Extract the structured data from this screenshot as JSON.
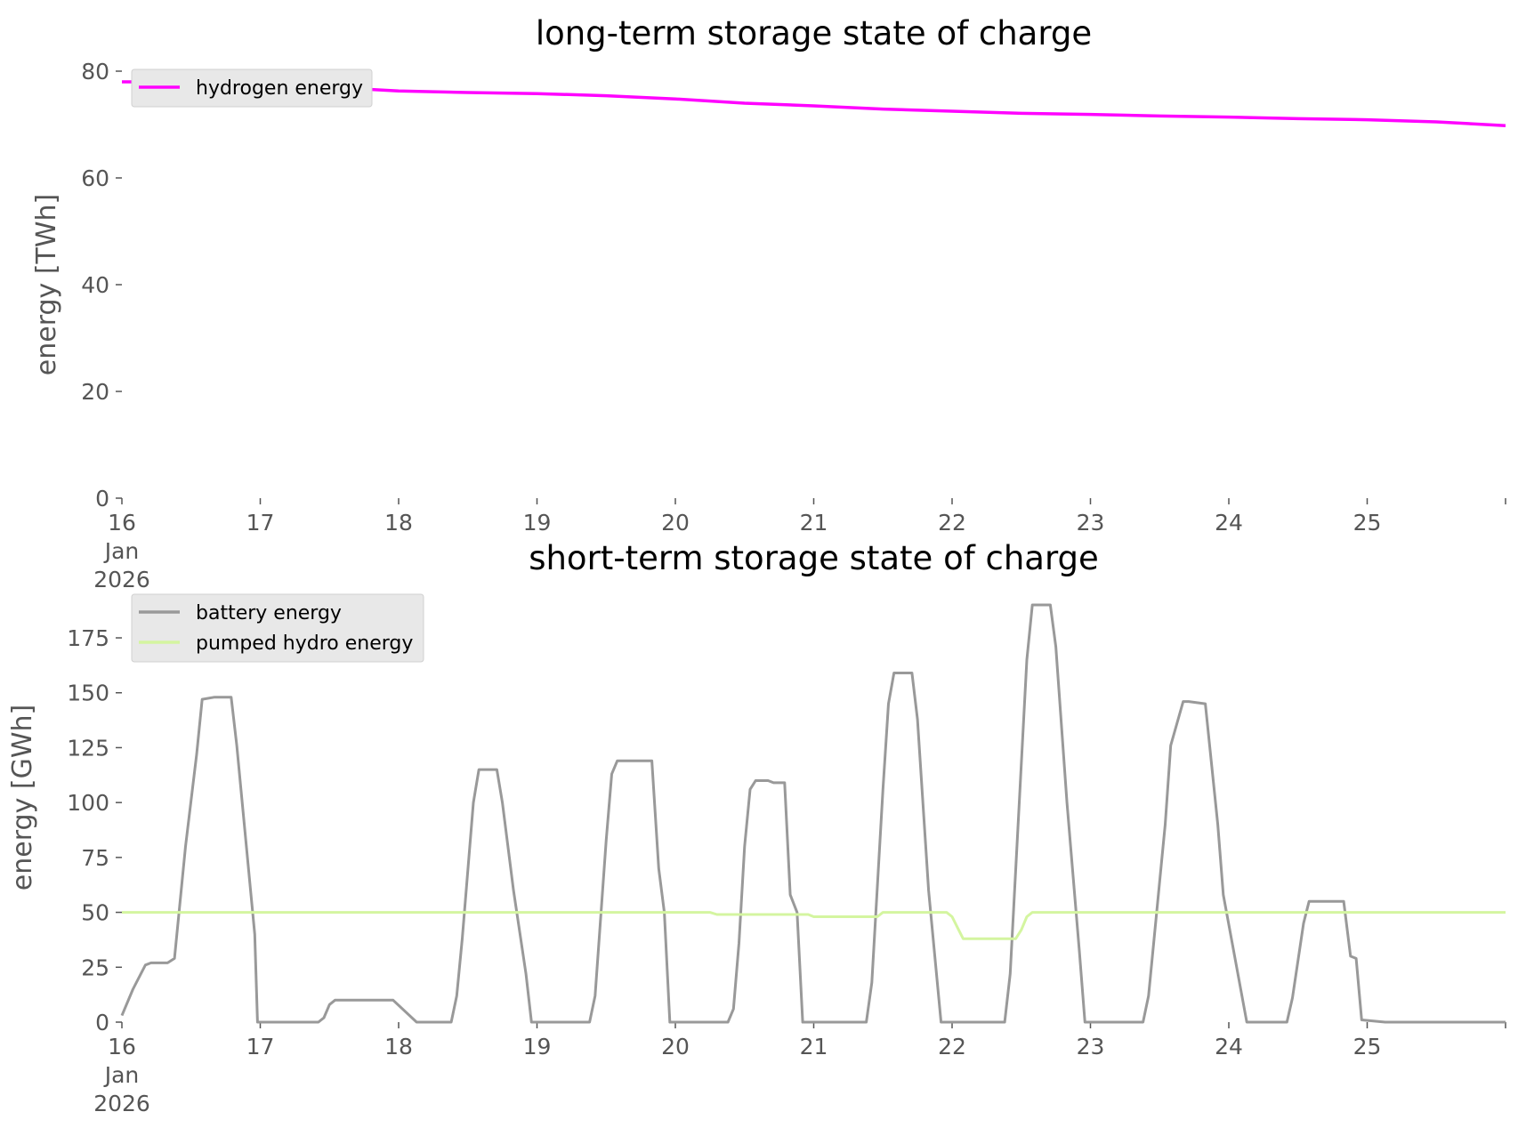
{
  "chart_data": [
    {
      "type": "line",
      "title": "long-term storage state of charge",
      "xlabel": "",
      "ylabel": "energy [TWh]",
      "xlim": [
        16,
        26
      ],
      "ylim": [
        0,
        80
      ],
      "xticks": [
        {
          "v": 16,
          "lines": [
            "16",
            "Jan",
            "2026"
          ]
        },
        {
          "v": 17,
          "lines": [
            "17"
          ]
        },
        {
          "v": 18,
          "lines": [
            "18"
          ]
        },
        {
          "v": 19,
          "lines": [
            "19"
          ]
        },
        {
          "v": 20,
          "lines": [
            "20"
          ]
        },
        {
          "v": 21,
          "lines": [
            "21"
          ]
        },
        {
          "v": 22,
          "lines": [
            "22"
          ]
        },
        {
          "v": 23,
          "lines": [
            "23"
          ]
        },
        {
          "v": 24,
          "lines": [
            "24"
          ]
        },
        {
          "v": 25,
          "lines": [
            "25"
          ]
        },
        {
          "v": 26,
          "lines": []
        }
      ],
      "yticks": [
        0,
        20,
        40,
        60,
        80
      ],
      "legend": "top-left",
      "grid": false,
      "series": [
        {
          "name": "hydrogen energy",
          "color": "#ff00ff",
          "x": [
            16,
            16.5,
            17,
            17.5,
            18,
            18.5,
            19,
            19.5,
            20,
            20.5,
            21,
            21.5,
            22,
            22.5,
            23,
            23.5,
            24,
            24.5,
            25,
            25.5,
            26
          ],
          "y": [
            78,
            78,
            77.5,
            77,
            76.3,
            76,
            75.8,
            75.4,
            74.8,
            74,
            73.5,
            72.9,
            72.5,
            72.1,
            71.9,
            71.6,
            71.4,
            71.1,
            70.9,
            70.5,
            69.8
          ]
        }
      ]
    },
    {
      "type": "line",
      "title": "short-term storage state of charge",
      "xlabel": "",
      "ylabel": "energy [GWh]",
      "xlim": [
        16,
        26
      ],
      "ylim": [
        0,
        190
      ],
      "xticks": [
        {
          "v": 16,
          "lines": [
            "16",
            "Jan",
            "2026"
          ]
        },
        {
          "v": 17,
          "lines": [
            "17"
          ]
        },
        {
          "v": 18,
          "lines": [
            "18"
          ]
        },
        {
          "v": 19,
          "lines": [
            "19"
          ]
        },
        {
          "v": 20,
          "lines": [
            "20"
          ]
        },
        {
          "v": 21,
          "lines": [
            "21"
          ]
        },
        {
          "v": 22,
          "lines": [
            "22"
          ]
        },
        {
          "v": 23,
          "lines": [
            "23"
          ]
        },
        {
          "v": 24,
          "lines": [
            "24"
          ]
        },
        {
          "v": 25,
          "lines": [
            "25"
          ]
        },
        {
          "v": 26,
          "lines": []
        }
      ],
      "yticks": [
        0,
        25,
        50,
        75,
        100,
        125,
        150,
        175
      ],
      "legend": "top-left",
      "grid": false,
      "series": [
        {
          "name": "battery energy",
          "color": "#999999",
          "x": [
            16,
            16.08,
            16.17,
            16.21,
            16.25,
            16.33,
            16.38,
            16.46,
            16.54,
            16.58,
            16.67,
            16.79,
            16.83,
            16.96,
            16.98,
            17.13,
            17.42,
            17.46,
            17.5,
            17.54,
            17.63,
            17.75,
            17.92,
            17.96,
            18.13,
            18.38,
            18.42,
            18.46,
            18.54,
            18.58,
            18.71,
            18.75,
            18.83,
            18.92,
            18.96,
            19.13,
            19.38,
            19.42,
            19.5,
            19.54,
            19.58,
            19.71,
            19.83,
            19.88,
            19.92,
            19.96,
            20.13,
            20.38,
            20.42,
            20.46,
            20.5,
            20.54,
            20.58,
            20.67,
            20.71,
            20.79,
            20.83,
            20.88,
            20.92,
            20.96,
            21.08,
            21.38,
            21.42,
            21.5,
            21.54,
            21.58,
            21.71,
            21.75,
            21.83,
            21.92,
            21.96,
            22.13,
            22.38,
            22.42,
            22.54,
            22.58,
            22.71,
            22.75,
            22.83,
            22.92,
            22.96,
            23.13,
            23.38,
            23.42,
            23.54,
            23.58,
            23.67,
            23.71,
            23.83,
            23.92,
            23.96,
            24.13,
            24.42,
            24.46,
            24.54,
            24.58,
            24.67,
            24.75,
            24.83,
            24.88,
            24.92,
            24.96,
            25.13,
            25.5,
            26
          ],
          "y": [
            3,
            15,
            26,
            27,
            27,
            27,
            29,
            80,
            122,
            147,
            148,
            148,
            126,
            40,
            0,
            0,
            0,
            2,
            8,
            10,
            10,
            10,
            10,
            10,
            0,
            0,
            12,
            38,
            100,
            115,
            115,
            100,
            60,
            22,
            0,
            0,
            0,
            12,
            83,
            113,
            119,
            119,
            119,
            70,
            50,
            0,
            0,
            0,
            6,
            36,
            80,
            106,
            110,
            110,
            109,
            109,
            58,
            50,
            0,
            0,
            0,
            0,
            18,
            106,
            145,
            159,
            159,
            138,
            60,
            0,
            0,
            0,
            0,
            22,
            165,
            190,
            190,
            171,
            100,
            32,
            0,
            0,
            0,
            12,
            90,
            126,
            146,
            146,
            145,
            90,
            58,
            0,
            0,
            11,
            45,
            55,
            55,
            55,
            55,
            30,
            29,
            1,
            0,
            0,
            0
          ]
        },
        {
          "name": "pumped hydro energy",
          "color": "#d4f5a0",
          "x": [
            16,
            20.25,
            20.3,
            20.96,
            21,
            21.46,
            21.5,
            21.96,
            22,
            22.04,
            22.08,
            22.46,
            22.5,
            22.54,
            22.58,
            26
          ],
          "y": [
            50,
            50,
            49,
            49,
            48,
            48,
            50,
            50,
            48,
            43,
            38,
            38,
            42,
            48,
            50,
            50
          ]
        }
      ]
    }
  ]
}
